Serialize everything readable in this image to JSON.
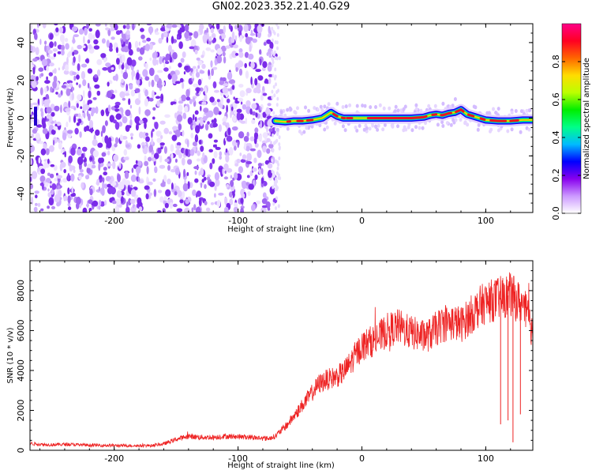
{
  "title": "GN02.2023.352.21.40.G29",
  "chart_data": [
    {
      "type": "heatmap",
      "name": "spectrogram",
      "xlabel": "Height of straight line (km)",
      "ylabel": "Frequency (Hz)",
      "xlim": [
        -268,
        138
      ],
      "ylim": [
        -50,
        50
      ],
      "xticks": [
        -200,
        -100,
        0,
        100
      ],
      "xtick_labels": [
        "-200",
        "-100",
        "0",
        "100"
      ],
      "yticks": [
        -40,
        -20,
        0,
        20,
        40
      ],
      "ytick_labels": [
        "-40",
        "-20",
        "0",
        "20",
        "40"
      ],
      "noise_region_x": [
        -268,
        -70
      ],
      "signal_region_x": [
        -70,
        138
      ],
      "signal_track": {
        "x": [
          -70,
          -62,
          -55,
          -48,
          -40,
          -32,
          -25,
          -20,
          -15,
          -10,
          -5,
          0,
          10,
          20,
          30,
          40,
          50,
          55,
          60,
          65,
          70,
          75,
          80,
          85,
          90,
          95,
          100,
          110,
          120,
          130,
          138
        ],
        "y": [
          -1.5,
          -2,
          -1.5,
          -1.5,
          -1,
          0,
          3,
          1,
          0,
          0,
          0,
          0,
          0,
          0,
          0,
          0,
          0.5,
          1.5,
          2,
          1.5,
          2.5,
          3,
          4.5,
          2,
          1,
          0,
          -1,
          -1.5,
          -1.5,
          -1,
          -1
        ]
      },
      "colorbar": {
        "label": "Normalized spectral amplitude",
        "range": [
          0,
          1
        ],
        "ticks": [
          0.0,
          0.2,
          0.4,
          0.6,
          0.8
        ],
        "tick_labels": [
          "0.0",
          "0.2",
          "0.4",
          "0.6",
          "0.8"
        ],
        "colors": [
          "#ffffff",
          "#cc99ff",
          "#8800ee",
          "#0000ff",
          "#00bbff",
          "#00ff88",
          "#00ee00",
          "#bbff00",
          "#ffdd00",
          "#ff6600",
          "#ff0022",
          "#ff0088"
        ]
      }
    },
    {
      "type": "line",
      "name": "snr",
      "xlabel": "Height of straight line (km)",
      "ylabel": "SNR (10 * v/v)",
      "xlim": [
        -268,
        138
      ],
      "ylim": [
        0,
        9500
      ],
      "xticks": [
        -200,
        -100,
        0,
        100
      ],
      "xtick_labels": [
        "-200",
        "-100",
        "0",
        "100"
      ],
      "yticks": [
        0,
        2000,
        4000,
        6000,
        8000
      ],
      "ytick_labels": [
        "0",
        "2000",
        "4000",
        "6000",
        "8000"
      ],
      "color": "#ee2222",
      "series": [
        {
          "x": [
            -268,
            -260,
            -250,
            -240,
            -230,
            -220,
            -210,
            -200,
            -190,
            -180,
            -170,
            -160,
            -150,
            -140,
            -130,
            -120,
            -110,
            -100,
            -90,
            -80,
            -75,
            -70,
            -65,
            -60,
            -55,
            -50,
            -45,
            -40,
            -35,
            -30,
            -25,
            -20,
            -15,
            -10,
            -5,
            0,
            5,
            10,
            15,
            20,
            25,
            30,
            35,
            40,
            45,
            50,
            55,
            60,
            65,
            70,
            75,
            80,
            85,
            90,
            95,
            100,
            105,
            110,
            115,
            120,
            125,
            130,
            135,
            138
          ],
          "y": [
            350,
            300,
            280,
            300,
            280,
            260,
            250,
            240,
            230,
            230,
            240,
            320,
            550,
            700,
            650,
            650,
            700,
            680,
            650,
            600,
            600,
            700,
            1000,
            1300,
            1700,
            2100,
            2500,
            2900,
            3300,
            3500,
            3600,
            3700,
            3900,
            4300,
            4800,
            5200,
            5400,
            5500,
            5700,
            6000,
            6100,
            6200,
            6000,
            5900,
            5800,
            5700,
            5800,
            6100,
            6300,
            6400,
            6400,
            6300,
            6600,
            6900,
            7200,
            7400,
            7500,
            7600,
            7700,
            7800,
            7500,
            7300,
            6500,
            5900
          ]
        }
      ],
      "dips": [
        {
          "x": 112,
          "y": 1300
        },
        {
          "x": 118,
          "y": 1500
        },
        {
          "x": 122,
          "y": 400
        },
        {
          "x": 128,
          "y": 1800
        }
      ]
    }
  ]
}
